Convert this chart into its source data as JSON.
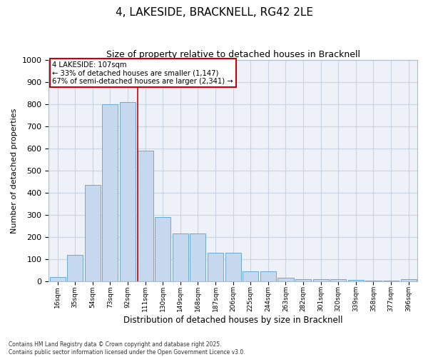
{
  "title": "4, LAKESIDE, BRACKNELL, RG42 2LE",
  "subtitle": "Size of property relative to detached houses in Bracknell",
  "xlabel": "Distribution of detached houses by size in Bracknell",
  "ylabel": "Number of detached properties",
  "categories": [
    "16sqm",
    "35sqm",
    "54sqm",
    "73sqm",
    "92sqm",
    "111sqm",
    "130sqm",
    "149sqm",
    "168sqm",
    "187sqm",
    "206sqm",
    "225sqm",
    "244sqm",
    "263sqm",
    "282sqm",
    "301sqm",
    "320sqm",
    "339sqm",
    "358sqm",
    "377sqm",
    "396sqm"
  ],
  "values": [
    20,
    120,
    435,
    800,
    810,
    590,
    290,
    215,
    215,
    130,
    130,
    45,
    45,
    15,
    10,
    10,
    10,
    5,
    3,
    2,
    8
  ],
  "bar_color": "#c5d8ee",
  "bar_edge_color": "#6aaad4",
  "property_label": "4 LAKESIDE: 107sqm",
  "annotation_line1": "← 33% of detached houses are smaller (1,147)",
  "annotation_line2": "67% of semi-detached houses are larger (2,341) →",
  "vline_color": "#cc0000",
  "vline_index": 5,
  "annotation_box_color": "#cc0000",
  "ylim": [
    0,
    1000
  ],
  "yticks": [
    0,
    100,
    200,
    300,
    400,
    500,
    600,
    700,
    800,
    900,
    1000
  ],
  "grid_color": "#c8d4e0",
  "background_color": "#eef2f8",
  "footer_line1": "Contains HM Land Registry data © Crown copyright and database right 2025.",
  "footer_line2": "Contains public sector information licensed under the Open Government Licence v3.0."
}
